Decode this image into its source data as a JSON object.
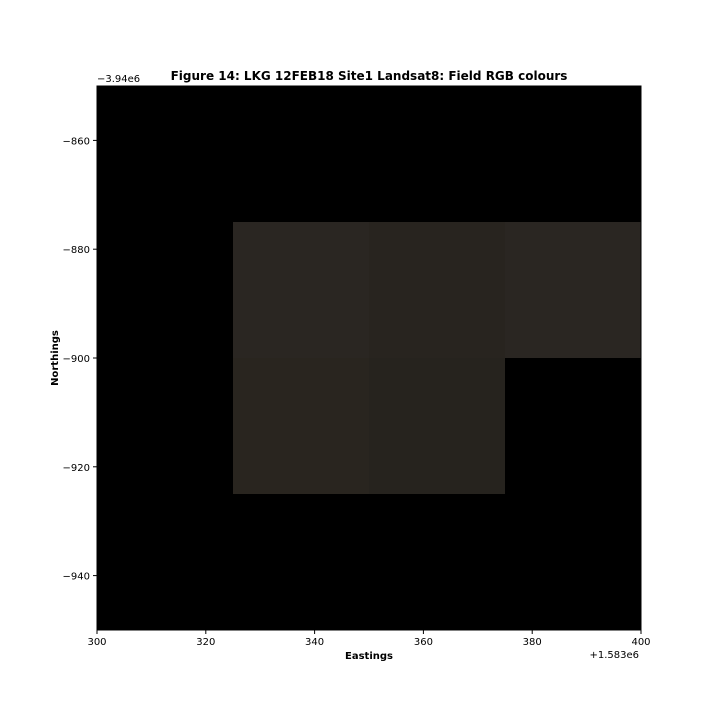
{
  "chart_data": {
    "type": "heatmap",
    "title": "Figure 14: LKG 12FEB18 Site1 Landsat8: Field RGB colours",
    "xlabel": "Eastings",
    "ylabel": "Northings",
    "x_offset_label": "+1.583e6",
    "y_offset_label": "−3.94e6",
    "xlim": [
      300,
      400
    ],
    "ylim": [
      -950,
      -850
    ],
    "x_ticks": [
      300,
      320,
      340,
      360,
      380,
      400
    ],
    "y_ticks": [
      -860,
      -880,
      -900,
      -920,
      -940
    ],
    "x_tick_labels": [
      "300",
      "320",
      "340",
      "360",
      "380",
      "400"
    ],
    "y_tick_labels": [
      "−860",
      "−880",
      "−900",
      "−920",
      "−940"
    ],
    "background_color": "#000000",
    "cells": [
      {
        "x0": 325,
        "x1": 350,
        "y0": -900,
        "y1": -875,
        "color": "#2a2622"
      },
      {
        "x0": 350,
        "x1": 375,
        "y0": -900,
        "y1": -875,
        "color": "#28241f"
      },
      {
        "x0": 375,
        "x1": 400,
        "y0": -900,
        "y1": -875,
        "color": "#2a2622"
      },
      {
        "x0": 325,
        "x1": 350,
        "y0": -925,
        "y1": -900,
        "color": "#29251f"
      },
      {
        "x0": 350,
        "x1": 375,
        "y0": -925,
        "y1": -900,
        "color": "#26231e"
      }
    ]
  }
}
